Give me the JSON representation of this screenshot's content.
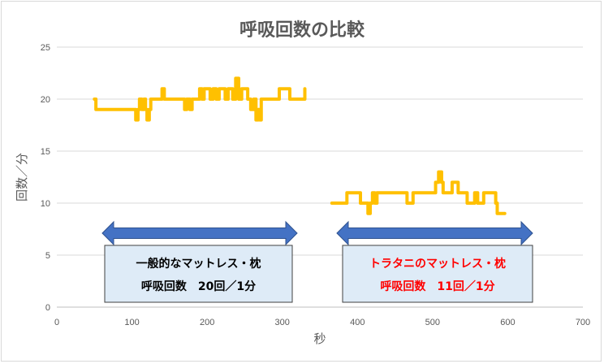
{
  "chart_data": {
    "type": "line",
    "title": "呼吸回数の比較",
    "xlabel": "秒",
    "ylabel": "回数／分",
    "xlim": [
      0,
      700
    ],
    "ylim": [
      0,
      25
    ],
    "x_ticks": [
      0,
      100,
      200,
      300,
      400,
      500,
      600,
      700
    ],
    "y_ticks": [
      0,
      5,
      10,
      15,
      20,
      25
    ],
    "grid": "horizontal",
    "line_color": "#FFC000",
    "series": [
      {
        "points": [
          [
            50,
            20
          ],
          [
            52,
            19
          ],
          [
            60,
            19
          ],
          [
            70,
            19
          ],
          [
            80,
            19
          ],
          [
            90,
            19
          ],
          [
            95,
            19
          ],
          [
            100,
            19
          ],
          [
            105,
            18
          ],
          [
            108,
            19
          ],
          [
            110,
            20
          ],
          [
            113,
            19
          ],
          [
            116,
            20
          ],
          [
            118,
            19
          ],
          [
            120,
            18
          ],
          [
            123,
            19
          ],
          [
            125,
            20
          ],
          [
            130,
            20
          ],
          [
            135,
            20
          ],
          [
            140,
            21
          ],
          [
            143,
            20
          ],
          [
            150,
            20
          ],
          [
            155,
            20
          ],
          [
            160,
            20
          ],
          [
            165,
            20
          ],
          [
            170,
            19
          ],
          [
            173,
            20
          ],
          [
            177,
            19
          ],
          [
            180,
            20
          ],
          [
            185,
            20
          ],
          [
            190,
            21
          ],
          [
            193,
            20
          ],
          [
            196,
            21
          ],
          [
            200,
            21
          ],
          [
            204,
            20
          ],
          [
            208,
            21
          ],
          [
            212,
            20
          ],
          [
            216,
            21
          ],
          [
            220,
            21
          ],
          [
            224,
            20
          ],
          [
            228,
            21
          ],
          [
            230,
            21
          ],
          [
            234,
            20
          ],
          [
            238,
            22
          ],
          [
            242,
            20
          ],
          [
            246,
            21
          ],
          [
            250,
            21
          ],
          [
            254,
            20
          ],
          [
            258,
            19
          ],
          [
            262,
            20
          ],
          [
            265,
            18
          ],
          [
            268,
            19
          ],
          [
            270,
            18
          ],
          [
            272,
            20
          ],
          [
            278,
            20
          ],
          [
            285,
            20
          ],
          [
            290,
            20
          ],
          [
            296,
            21
          ],
          [
            300,
            21
          ],
          [
            305,
            21
          ],
          [
            310,
            20
          ],
          [
            316,
            20
          ],
          [
            322,
            20
          ],
          [
            326,
            20
          ],
          [
            330,
            21
          ]
        ]
      },
      {
        "points": [
          [
            366,
            10
          ],
          [
            374,
            10
          ],
          [
            382,
            10
          ],
          [
            386,
            11
          ],
          [
            392,
            11
          ],
          [
            400,
            11
          ],
          [
            404,
            10
          ],
          [
            408,
            10
          ],
          [
            412,
            10
          ],
          [
            414,
            9
          ],
          [
            417,
            10
          ],
          [
            420,
            11
          ],
          [
            423,
            10
          ],
          [
            426,
            11
          ],
          [
            430,
            11
          ],
          [
            440,
            11
          ],
          [
            450,
            11
          ],
          [
            460,
            11
          ],
          [
            466,
            10
          ],
          [
            470,
            10
          ],
          [
            474,
            11
          ],
          [
            480,
            11
          ],
          [
            490,
            11
          ],
          [
            496,
            11
          ],
          [
            500,
            11
          ],
          [
            504,
            12
          ],
          [
            508,
            13
          ],
          [
            512,
            12
          ],
          [
            514,
            11
          ],
          [
            518,
            11
          ],
          [
            522,
            11
          ],
          [
            526,
            12
          ],
          [
            530,
            12
          ],
          [
            534,
            11
          ],
          [
            538,
            11
          ],
          [
            542,
            11
          ],
          [
            546,
            10
          ],
          [
            550,
            10
          ],
          [
            556,
            11
          ],
          [
            560,
            10
          ],
          [
            564,
            10
          ],
          [
            568,
            11
          ],
          [
            572,
            11
          ],
          [
            576,
            11
          ],
          [
            580,
            11
          ],
          [
            584,
            10
          ],
          [
            586,
            9
          ],
          [
            590,
            9
          ],
          [
            596,
            9
          ]
        ]
      }
    ],
    "annotations": [
      {
        "line1": "一般的なマットレス・枕",
        "line2": "呼吸回数　20回／1分",
        "text_color": "#000000"
      },
      {
        "line1": "トラタニのマットレス・枕",
        "line2": "呼吸回数　11回／1分",
        "text_color": "#FF0000"
      }
    ],
    "arrow_color": "#4472C4",
    "box_fill": "#DEEBF7"
  }
}
